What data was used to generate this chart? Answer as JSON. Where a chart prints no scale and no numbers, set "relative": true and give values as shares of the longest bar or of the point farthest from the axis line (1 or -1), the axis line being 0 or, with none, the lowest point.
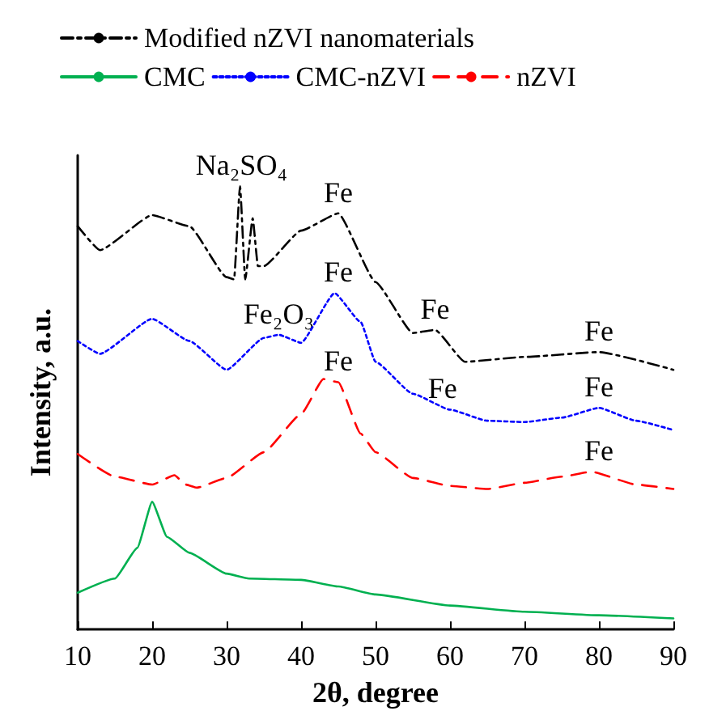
{
  "chart_data": {
    "type": "line",
    "relative": true,
    "xlabel": "2θ, degree",
    "ylabel": "Intensity, a.u.",
    "xlim": [
      10,
      90
    ],
    "xticks": [
      10,
      20,
      30,
      40,
      50,
      60,
      70,
      80,
      90
    ],
    "legend": "top",
    "marker": "none",
    "grid": false,
    "series": [
      {
        "name": "Modified nZVI nanomaterials",
        "color": "#000000",
        "line_style": "dashdot",
        "x": [
          10,
          13,
          20,
          25,
          30,
          31,
          31.8,
          32.5,
          33.5,
          34.2,
          35,
          40,
          45,
          50,
          55,
          58,
          62,
          70,
          80,
          90
        ],
        "values": [
          0.91,
          0.856,
          0.935,
          0.91,
          0.795,
          0.79,
          1.0,
          0.79,
          0.928,
          0.82,
          0.82,
          0.9,
          0.939,
          0.784,
          0.669,
          0.676,
          0.604,
          0.615,
          0.626,
          0.586
        ]
      },
      {
        "name": "CMC",
        "color": "#00b050",
        "line_style": "solid",
        "x": [
          10,
          15,
          18,
          20,
          22,
          25,
          30,
          33,
          40,
          45,
          50,
          60,
          70,
          80,
          90
        ],
        "values": [
          0.083,
          0.115,
          0.184,
          0.288,
          0.209,
          0.173,
          0.126,
          0.115,
          0.112,
          0.097,
          0.079,
          0.054,
          0.04,
          0.032,
          0.025
        ]
      },
      {
        "name": "CMC-nZVI",
        "color": "#0000ff",
        "line_style": "dotted",
        "x": [
          10,
          13,
          20,
          25,
          30,
          35,
          37,
          40,
          44.5,
          48,
          50,
          55,
          60,
          65,
          70,
          75,
          80,
          85,
          90
        ],
        "values": [
          0.651,
          0.622,
          0.701,
          0.651,
          0.586,
          0.658,
          0.665,
          0.647,
          0.759,
          0.694,
          0.604,
          0.532,
          0.496,
          0.471,
          0.468,
          0.478,
          0.5,
          0.471,
          0.45
        ]
      },
      {
        "name": "nZVI",
        "color": "#ff0000",
        "line_style": "dashed",
        "x": [
          10,
          15,
          20,
          23,
          24.5,
          26,
          30,
          35,
          40,
          43,
          45,
          48,
          50,
          55,
          60,
          65,
          70,
          75,
          79,
          85,
          90
        ],
        "values": [
          0.396,
          0.345,
          0.327,
          0.348,
          0.327,
          0.32,
          0.342,
          0.4,
          0.486,
          0.565,
          0.558,
          0.442,
          0.4,
          0.342,
          0.324,
          0.317,
          0.331,
          0.345,
          0.356,
          0.327,
          0.317
        ]
      }
    ],
    "annotations": [
      {
        "text": "Na₂SO₄",
        "x": 32,
        "y": 1.0
      },
      {
        "text": "Fe",
        "x": 45,
        "y": 0.939
      },
      {
        "text": "Fe",
        "x": 58,
        "y": 0.676
      },
      {
        "text": "Fe",
        "x": 80,
        "y": 0.626
      },
      {
        "text": "Fe₂O₃",
        "x": 37,
        "y": 0.665
      },
      {
        "text": "Fe",
        "x": 45,
        "y": 0.759
      },
      {
        "text": "Fe",
        "x": 59,
        "y": 0.496
      },
      {
        "text": "Fe",
        "x": 80,
        "y": 0.5
      },
      {
        "text": "Fe",
        "x": 45,
        "y": 0.558
      },
      {
        "text": "Fe",
        "x": 80,
        "y": 0.356
      }
    ]
  }
}
